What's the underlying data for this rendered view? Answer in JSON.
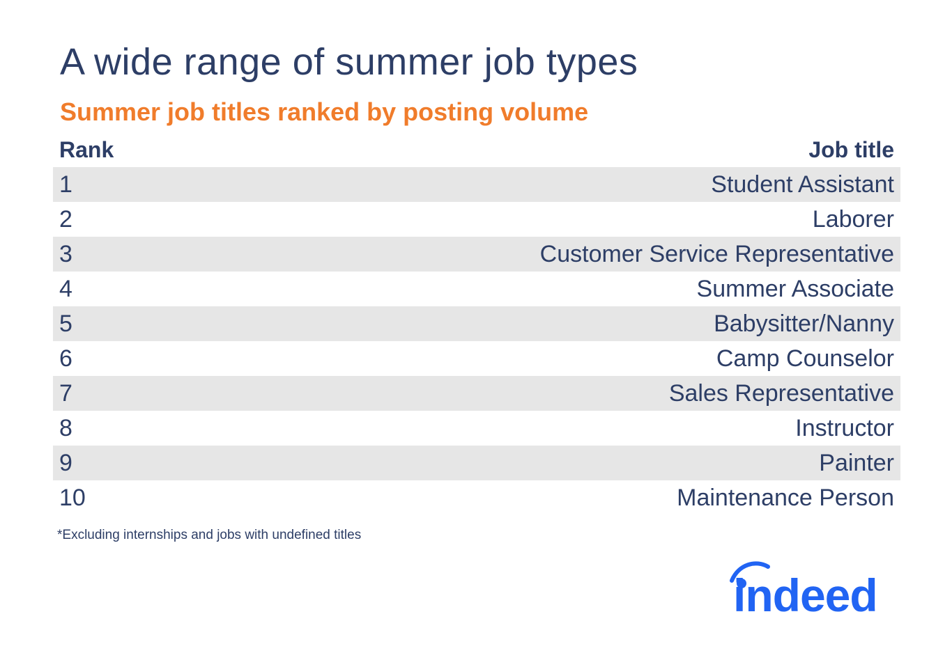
{
  "title": "A wide range of summer job types",
  "subtitle": "Summer job titles ranked by posting volume",
  "table": {
    "headers": {
      "rank": "Rank",
      "job_title": "Job title"
    },
    "rows": [
      {
        "rank": "1",
        "job_title": "Student Assistant"
      },
      {
        "rank": "2",
        "job_title": "Laborer"
      },
      {
        "rank": "3",
        "job_title": "Customer Service Representative"
      },
      {
        "rank": "4",
        "job_title": "Summer Associate"
      },
      {
        "rank": "5",
        "job_title": "Babysitter/Nanny"
      },
      {
        "rank": "6",
        "job_title": "Camp Counselor"
      },
      {
        "rank": "7",
        "job_title": "Sales Representative"
      },
      {
        "rank": "8",
        "job_title": "Instructor"
      },
      {
        "rank": "9",
        "job_title": "Painter"
      },
      {
        "rank": "10",
        "job_title": "Maintenance Person"
      }
    ]
  },
  "footnote": "*Excluding internships and jobs with undefined titles",
  "logo": {
    "text": "indeed",
    "color": "#2164f3"
  },
  "colors": {
    "text": "#2d3e66",
    "accent": "#f07c2b",
    "row_shade": "#e6e6e6"
  }
}
